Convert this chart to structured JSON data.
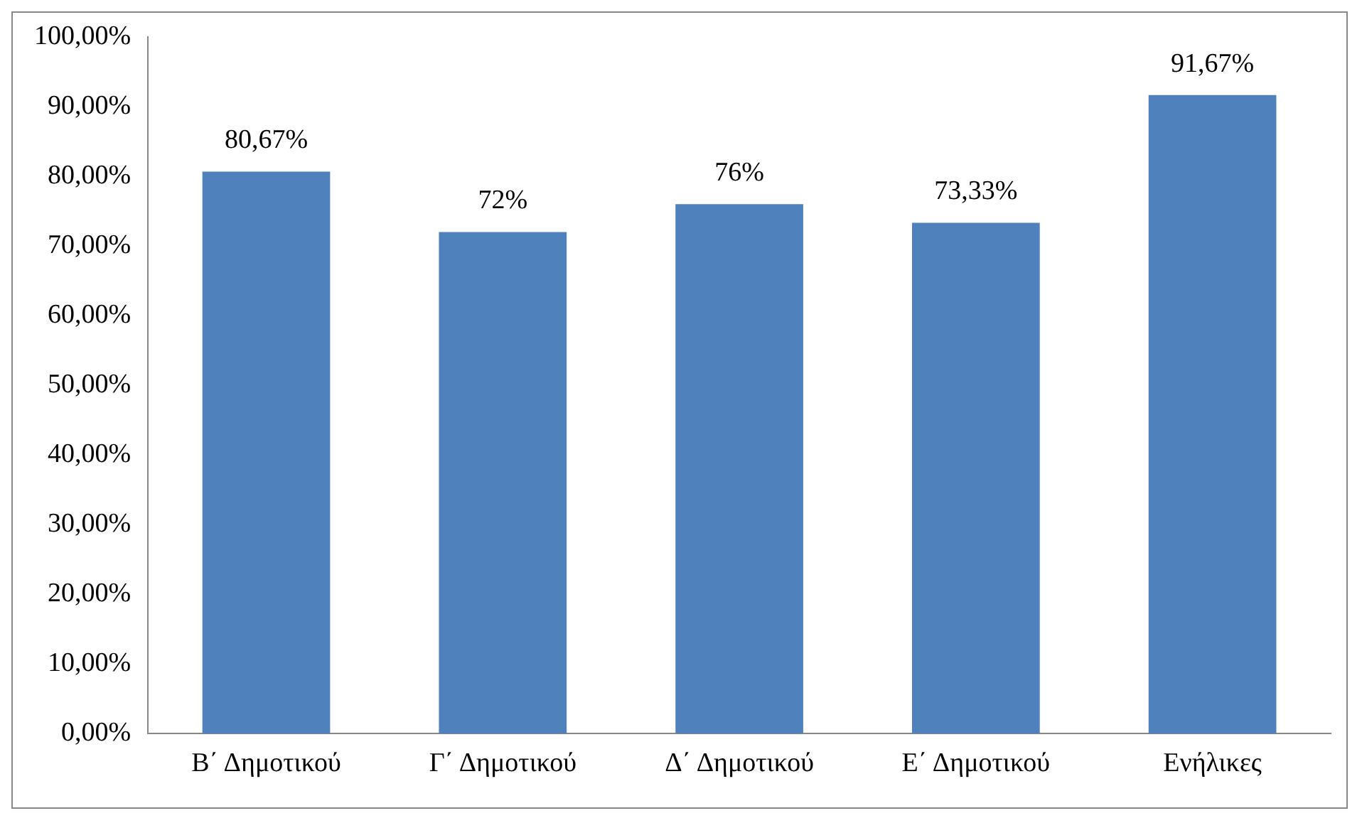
{
  "chart_data": {
    "type": "bar",
    "categories": [
      "Β΄ Δημοτικού",
      "Γ΄ Δημοτικού",
      "Δ΄ Δημοτικού",
      "Ε΄ Δημοτικού",
      "Ενήλικες"
    ],
    "values": [
      80.67,
      72,
      76,
      73.33,
      91.67
    ],
    "value_labels": [
      "80,67%",
      "72%",
      "76%",
      "73,33%",
      "91,67%"
    ],
    "color": "#4f81bd",
    "ylim": [
      0,
      100
    ],
    "yticks": [
      {
        "value": 0,
        "label": "0,00%"
      },
      {
        "value": 10,
        "label": "10,00%"
      },
      {
        "value": 20,
        "label": "20,00%"
      },
      {
        "value": 30,
        "label": "30,00%"
      },
      {
        "value": 40,
        "label": "40,00%"
      },
      {
        "value": 50,
        "label": "50,00%"
      },
      {
        "value": 60,
        "label": "60,00%"
      },
      {
        "value": 70,
        "label": "70,00%"
      },
      {
        "value": 80,
        "label": "80,00%"
      },
      {
        "value": 90,
        "label": "90,00%"
      },
      {
        "value": 100,
        "label": "100,00%"
      }
    ],
    "grid": false,
    "legend": false
  }
}
